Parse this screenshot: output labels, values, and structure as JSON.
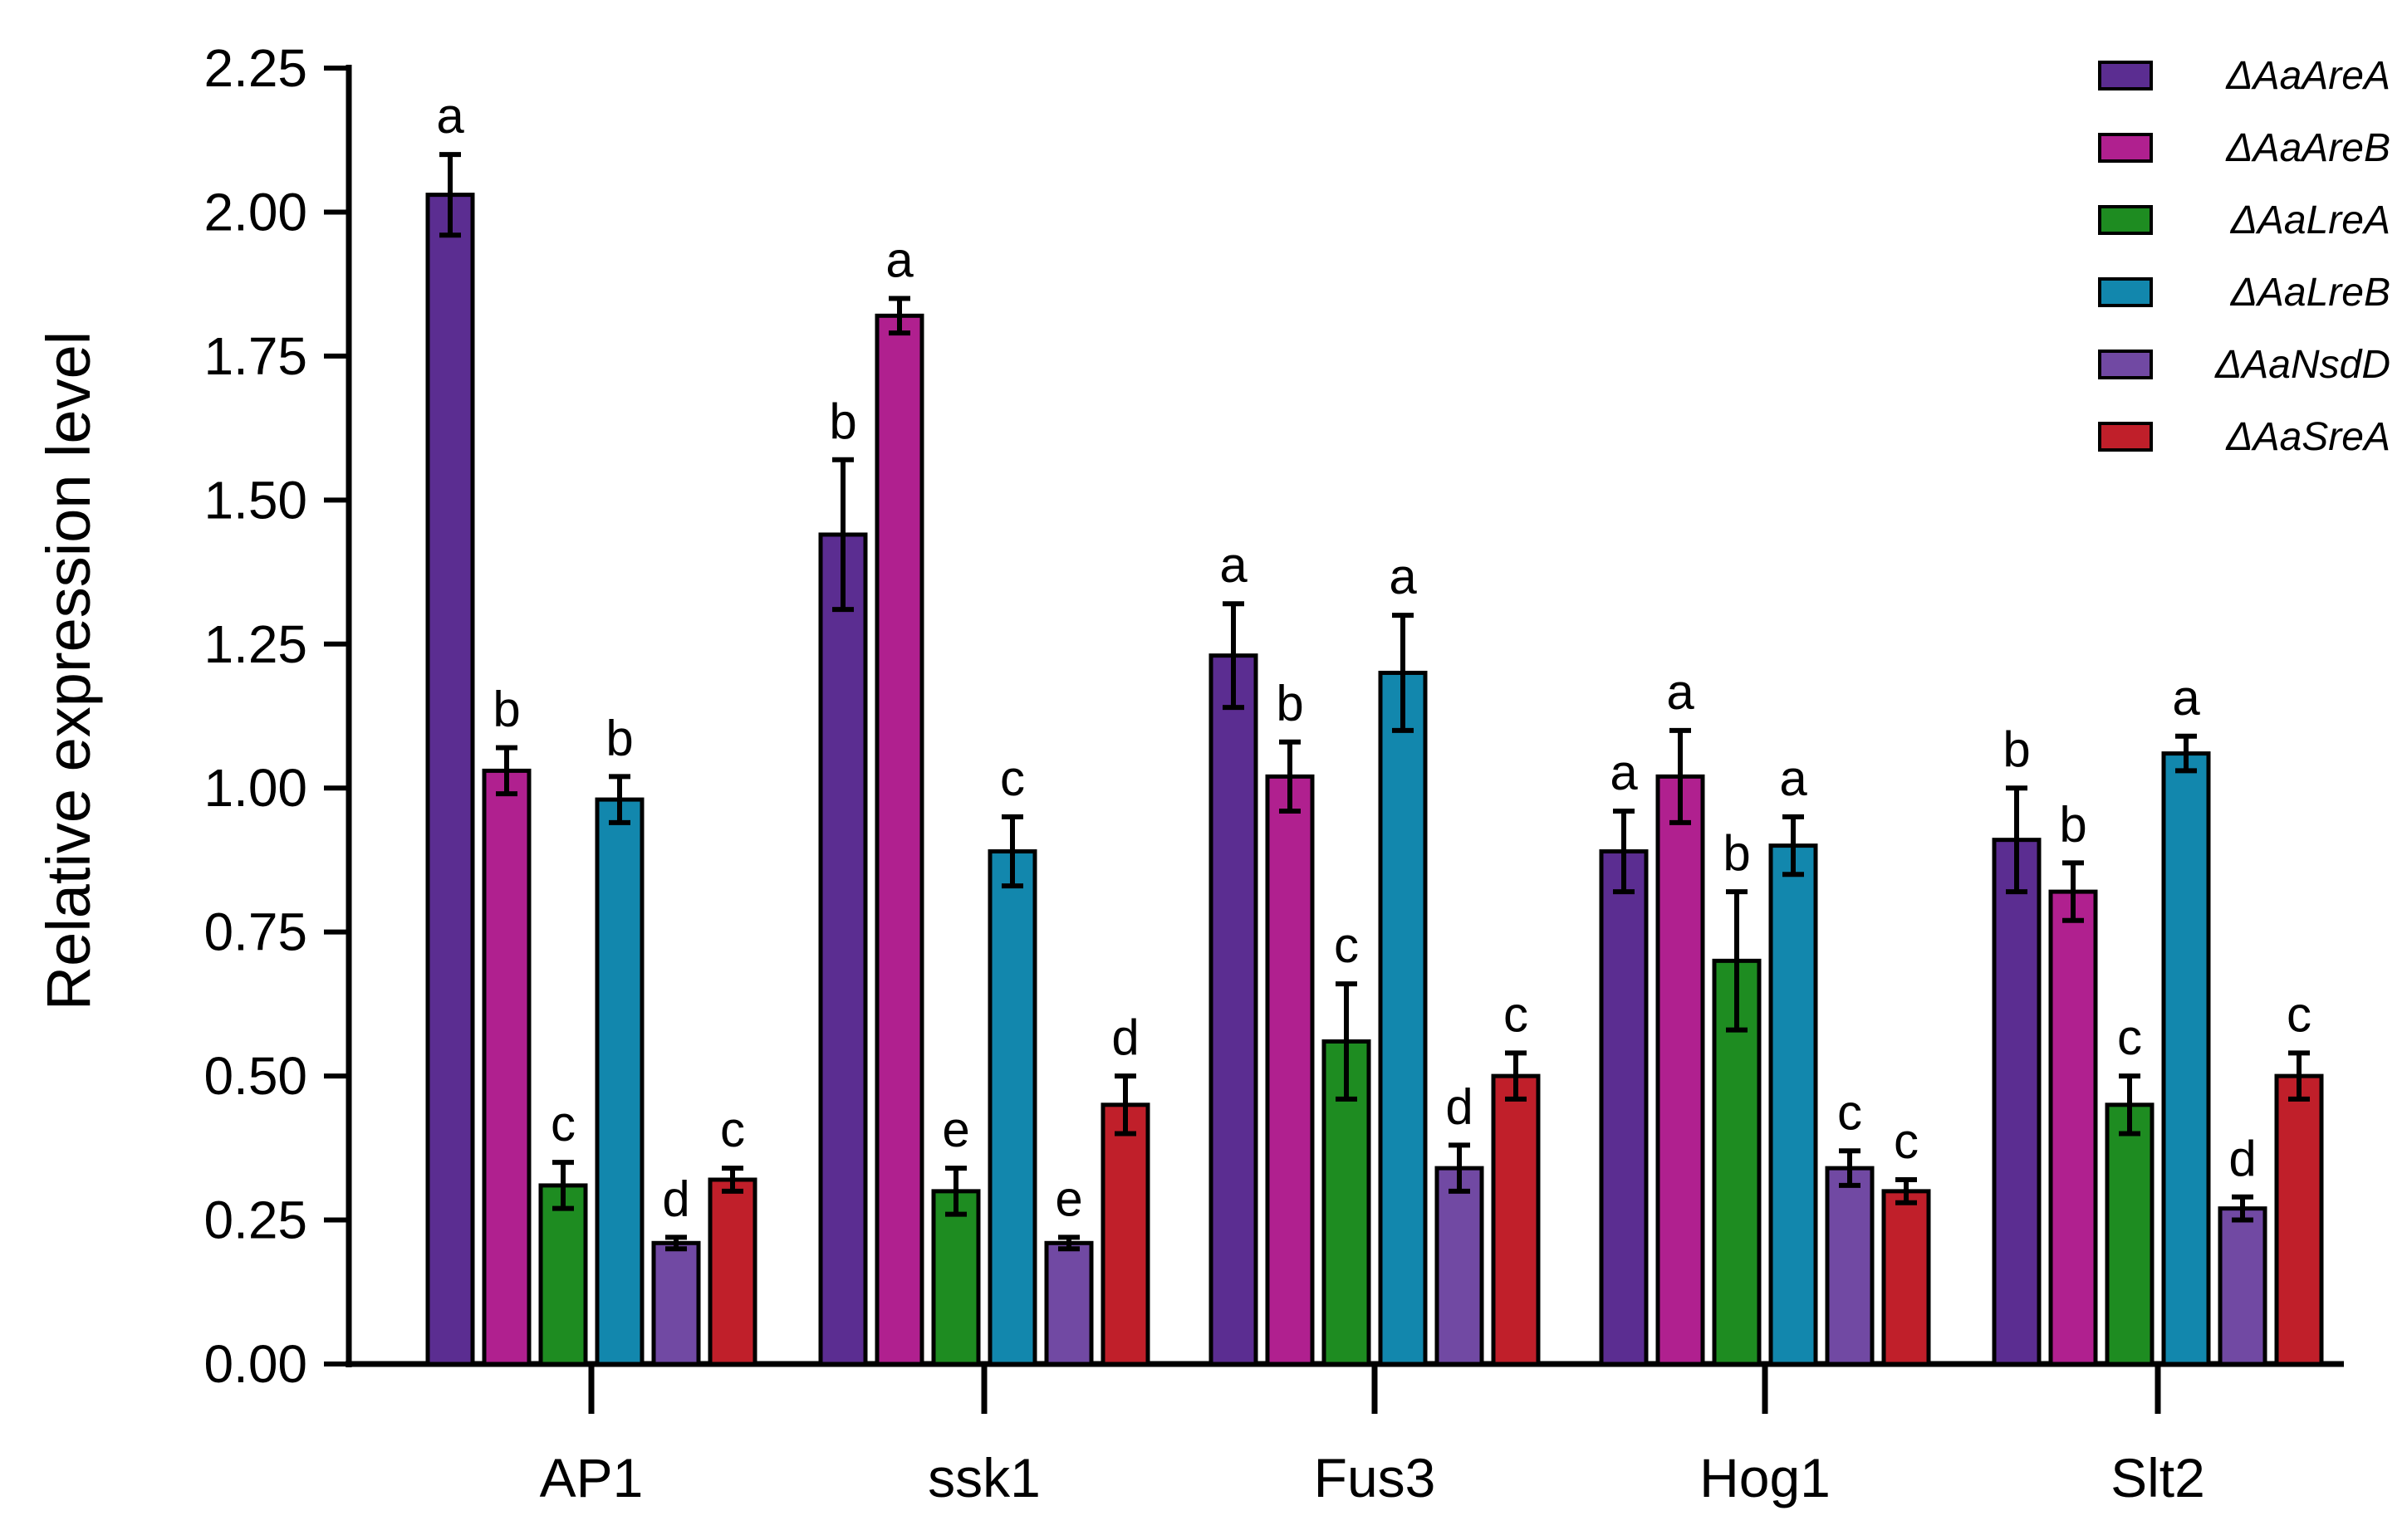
{
  "chart_data": {
    "type": "bar",
    "title": "",
    "xlabel": "",
    "ylabel": "Relative expression level",
    "ylim": [
      0,
      2.25
    ],
    "yticks": [
      "0.00",
      "0.25",
      "0.50",
      "0.75",
      "1.00",
      "1.25",
      "1.50",
      "1.75",
      "2.00",
      "2.25"
    ],
    "grid": false,
    "legend_position": "top-right",
    "categories": [
      "AP1",
      "ssk1",
      "Fus3",
      "Hog1",
      "Slt2"
    ],
    "series": [
      {
        "name": "ΔAaAreA",
        "color": "#5b2d91",
        "values": [
          2.03,
          1.44,
          1.23,
          0.89,
          0.91
        ],
        "errors": [
          0.07,
          0.13,
          0.09,
          0.07,
          0.09
        ],
        "letters": [
          "a",
          "b",
          "a",
          "a",
          "b"
        ]
      },
      {
        "name": "ΔAaAreB",
        "color": "#b0208f",
        "values": [
          1.03,
          1.82,
          1.02,
          1.02,
          0.82
        ],
        "errors": [
          0.04,
          0.03,
          0.06,
          0.08,
          0.05
        ],
        "letters": [
          "b",
          "a",
          "b",
          "a",
          "b"
        ]
      },
      {
        "name": "ΔAaLreA",
        "color": "#1e8c21",
        "values": [
          0.31,
          0.3,
          0.56,
          0.7,
          0.45
        ],
        "errors": [
          0.04,
          0.04,
          0.1,
          0.12,
          0.05
        ],
        "letters": [
          "c",
          "e",
          "c",
          "b",
          "c"
        ]
      },
      {
        "name": "ΔAaLreB",
        "color": "#1287ad",
        "values": [
          0.98,
          0.89,
          1.2,
          0.9,
          1.06
        ],
        "errors": [
          0.04,
          0.06,
          0.1,
          0.05,
          0.03
        ],
        "letters": [
          "b",
          "c",
          "a",
          "a",
          "a"
        ]
      },
      {
        "name": "ΔAaNsdD",
        "color": "#7149a3",
        "values": [
          0.21,
          0.21,
          0.34,
          0.34,
          0.27
        ],
        "errors": [
          0.01,
          0.01,
          0.04,
          0.03,
          0.02
        ],
        "letters": [
          "d",
          "e",
          "d",
          "c",
          "d"
        ]
      },
      {
        "name": "ΔAaSreA",
        "color": "#c01f2a",
        "values": [
          0.32,
          0.45,
          0.5,
          0.3,
          0.5
        ],
        "errors": [
          0.02,
          0.05,
          0.04,
          0.02,
          0.04
        ],
        "letters": [
          "c",
          "d",
          "c",
          "c",
          "c"
        ]
      }
    ]
  }
}
